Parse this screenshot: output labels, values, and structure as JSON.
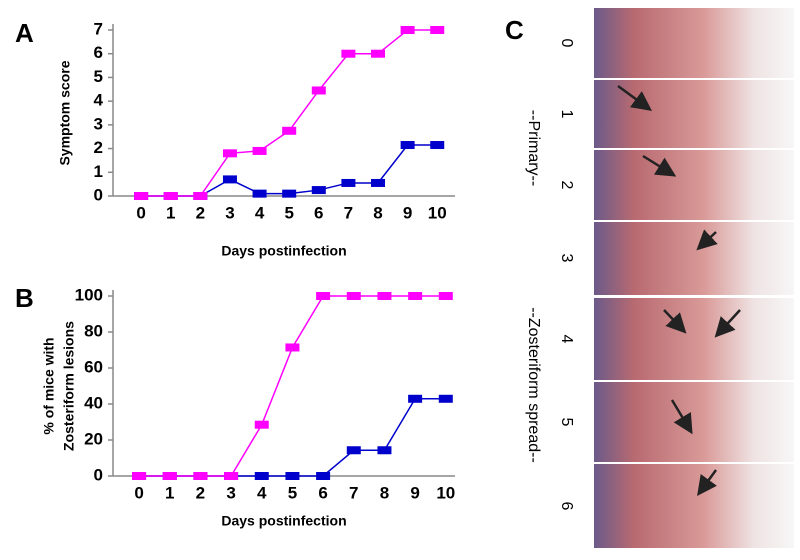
{
  "panel_labels": [
    "A",
    "B",
    "C"
  ],
  "chart_data": [
    {
      "type": "line",
      "ylabel": "Symptom score",
      "xlabel": "Days postinfection",
      "x": [
        0,
        1,
        2,
        3,
        4,
        5,
        6,
        7,
        8,
        9,
        10
      ],
      "series": [
        {
          "color": "#0000cc",
          "values": [
            0,
            0,
            0,
            0.7,
            0.1,
            0.1,
            0.25,
            0.55,
            0.55,
            2.15,
            2.15
          ]
        },
        {
          "color": "#ff00ff",
          "values": [
            0,
            0,
            0,
            1.8,
            1.9,
            2.75,
            4.45,
            6,
            6,
            7,
            7
          ]
        }
      ],
      "xlim": [
        -0.95,
        10.6
      ],
      "xticks": [
        0,
        1,
        2,
        3,
        4,
        5,
        6,
        7,
        8,
        9,
        10
      ],
      "ylim": [
        0,
        7
      ],
      "yticks": [
        0,
        1,
        2,
        3,
        4,
        5,
        6,
        7
      ],
      "grid": false
    },
    {
      "type": "line",
      "ylabel": [
        "% of mice with",
        "Zosteriform lesions"
      ],
      "xlabel": "Days postinfection",
      "x": [
        0,
        1,
        2,
        3,
        4,
        5,
        6,
        7,
        8,
        9,
        10
      ],
      "series": [
        {
          "color": "#0000cc",
          "values": [
            0,
            0,
            0,
            0,
            0,
            0,
            0,
            14.3,
            14.3,
            42.9,
            42.9
          ]
        },
        {
          "color": "#ff00ff",
          "values": [
            0,
            0,
            0,
            0,
            28.5,
            71.4,
            100,
            100,
            100,
            100,
            100
          ]
        }
      ],
      "xlim": [
        -0.85,
        10.3
      ],
      "xticks": [
        0,
        1,
        2,
        3,
        4,
        5,
        6,
        7,
        8,
        9,
        10
      ],
      "ylim": [
        0,
        100
      ],
      "yticks": [
        0,
        20,
        40,
        60,
        80,
        100
      ],
      "grid": false
    }
  ],
  "photo_panel": {
    "stage_labels": [
      "0",
      "1",
      "2",
      "3",
      "4",
      "5",
      "6"
    ],
    "groups": [
      "--Primary--",
      "--Zosteriform spread--"
    ]
  }
}
